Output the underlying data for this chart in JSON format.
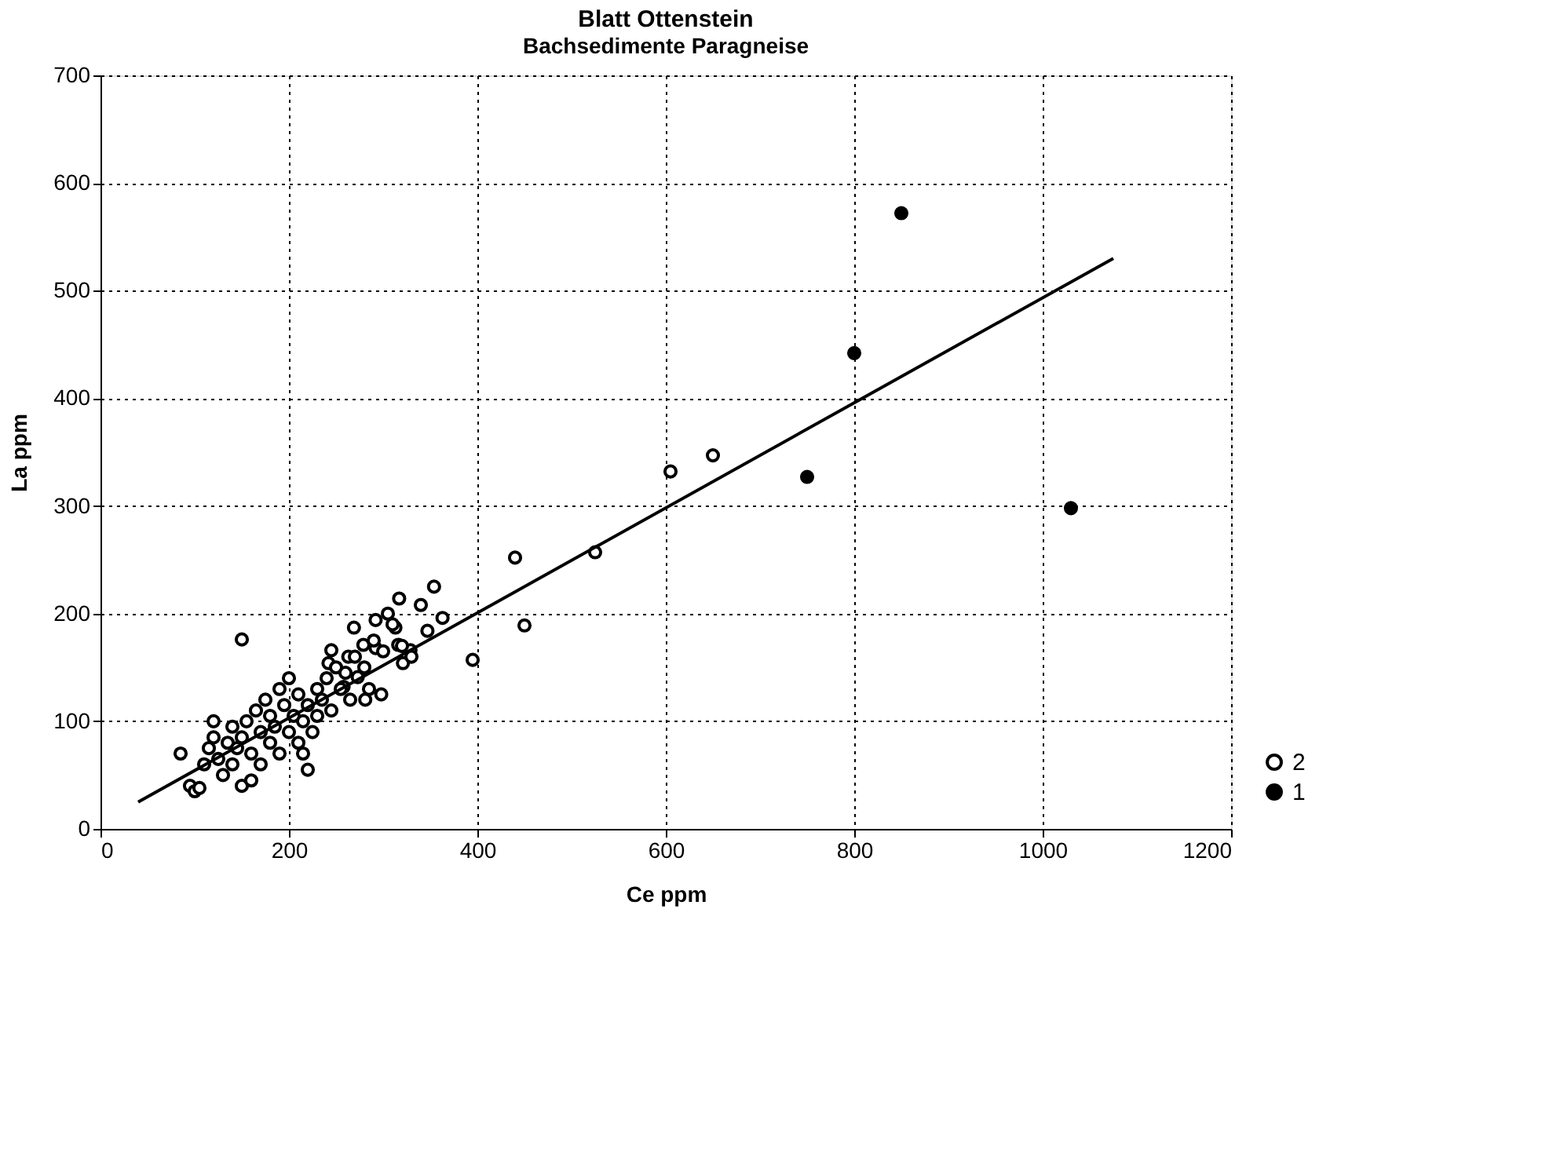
{
  "chart_data": {
    "type": "scatter",
    "title": "Blatt Ottenstein",
    "subtitle": "Bachsedimente Paragneise",
    "xlabel": "Ce ppm",
    "ylabel": "La ppm",
    "xlim": [
      0,
      1200
    ],
    "xticks": [
      0,
      200,
      400,
      600,
      800,
      1000,
      1200
    ],
    "ylim": [
      0,
      700
    ],
    "yticks": [
      0,
      100,
      200,
      300,
      400,
      500,
      600,
      700
    ],
    "grid": true,
    "legend": "bottom right",
    "series": [
      {
        "name": "2",
        "marker": "circle",
        "color": "#000000",
        "x": [
          150,
          354,
          317,
          340,
          363,
          347,
          305,
          292,
          269,
          313,
          245,
          263,
          279,
          292,
          316,
          321,
          329,
          298,
          281,
          242,
          273,
          258,
          395,
          440,
          450,
          525,
          605,
          650,
          85,
          95,
          100,
          105,
          110,
          115,
          120,
          120,
          125,
          130,
          135,
          140,
          140,
          145,
          150,
          150,
          155,
          160,
          160,
          165,
          170,
          170,
          175,
          180,
          180,
          185,
          190,
          190,
          195,
          200,
          200,
          205,
          210,
          210,
          215,
          215,
          220,
          220,
          225,
          230,
          230,
          235,
          240,
          245,
          250,
          255,
          260,
          265,
          270,
          280,
          285,
          290,
          300,
          310,
          320,
          330
        ],
        "values": [
          176,
          225,
          214,
          208,
          196,
          184,
          200,
          194,
          187,
          187,
          166,
          160,
          171,
          168,
          171,
          154,
          166,
          125,
          120,
          154,
          141,
          132,
          157,
          252,
          189,
          257,
          332,
          347,
          70,
          40,
          35,
          38,
          60,
          75,
          85,
          100,
          65,
          50,
          80,
          95,
          60,
          75,
          40,
          85,
          100,
          45,
          70,
          110,
          90,
          60,
          120,
          80,
          105,
          95,
          130,
          70,
          115,
          140,
          90,
          105,
          80,
          125,
          70,
          100,
          55,
          115,
          90,
          130,
          105,
          120,
          140,
          110,
          150,
          130,
          145,
          120,
          160,
          150,
          130,
          175,
          165,
          190,
          170,
          160
        ]
      },
      {
        "name": "1",
        "marker": "dot",
        "color": "#000000",
        "x": [
          850,
          800,
          750,
          1030
        ],
        "values": [
          572,
          442,
          327,
          298
        ]
      },
      {
        "type": "line",
        "color": "#000000",
        "x": [
          40,
          1075
        ],
        "values": [
          25,
          530
        ]
      }
    ]
  }
}
